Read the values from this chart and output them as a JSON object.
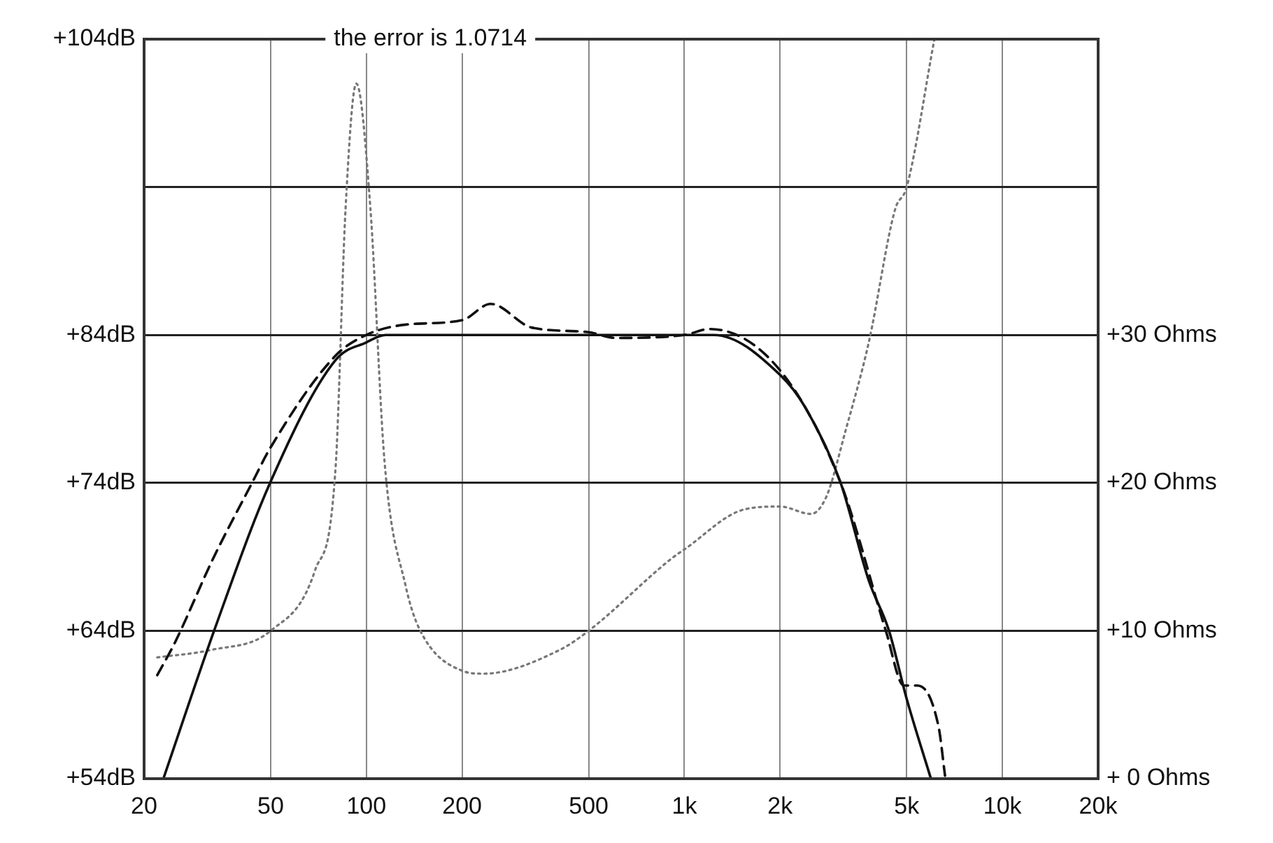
{
  "chart_data": {
    "type": "line",
    "title": "the error is 1.0714",
    "log": "x",
    "grid": true,
    "marker": "none",
    "legend": false,
    "xlim": [
      20,
      20000
    ],
    "xticks": [
      20,
      50,
      100,
      200,
      500,
      {
        "value": 1000,
        "label": "1k"
      },
      {
        "value": 2000,
        "label": "2k"
      },
      {
        "value": 5000,
        "label": "5k"
      },
      {
        "value": 10000,
        "label": "10k"
      },
      {
        "value": 20000,
        "label": "20k"
      }
    ],
    "ylim": [
      54,
      104
    ],
    "yticks": [
      {
        "value": 54,
        "label": "+54dB"
      },
      {
        "value": 64,
        "label": "+64dB"
      },
      {
        "value": 74,
        "label": "+74dB"
      },
      {
        "value": 84,
        "label": "+84dB"
      },
      {
        "value": 94,
        "label": null
      },
      {
        "value": 104,
        "label": "+104dB"
      }
    ],
    "y2lim": [
      0,
      50
    ],
    "y2ticks": [
      {
        "value": 0,
        "label": "+ 0 Ohms"
      },
      {
        "value": 10,
        "label": "+10 Ohms"
      },
      {
        "value": 20,
        "label": "+20 Ohms"
      },
      {
        "value": 30,
        "label": "+30 Ohms"
      },
      {
        "value": 40,
        "label": null
      },
      {
        "value": 50,
        "label": null
      }
    ],
    "series": [
      {
        "color": "#111111",
        "line_style": "solid",
        "x": [
          23,
          33.2,
          49.8,
          80,
          100,
          115,
          1240,
          2000,
          2400,
          3100,
          3800,
          4400,
          5000,
          5960
        ],
        "values": [
          54,
          64,
          74,
          82.3,
          83.5,
          84,
          84,
          81.3,
          79.1,
          74,
          67.4,
          64,
          59.4,
          54
        ]
      },
      {
        "color": "#111111",
        "line_style": "dashed",
        "x": [
          22,
          25,
          33,
          43.7,
          50,
          80,
          100,
          133,
          200,
          246,
          331,
          496,
          607,
          1000,
          1200,
          2000,
          3100,
          4300,
          4900,
          5400,
          6300,
          6600
        ],
        "values": [
          61,
          63.2,
          68.9,
          74,
          76.4,
          82.6,
          84,
          84.7,
          85,
          86.1,
          84.5,
          84.2,
          83.8,
          84,
          84.4,
          81.6,
          74,
          64,
          60.3,
          60.3,
          57.5,
          54.2
        ]
      },
      {
        "color": "#777777",
        "line_style": "dotted",
        "axis": "y2",
        "x": [
          22,
          32.4,
          50,
          69,
          80,
          86,
          93,
          103,
          114,
          133,
          147,
          200,
          233,
          405,
          500,
          913,
          1000,
          1540,
          2000,
          2500,
          2800,
          3200,
          3800,
          4600,
          5000,
          6100
        ],
        "values": [
          8.2,
          8.7,
          10,
          14.1,
          21,
          38.5,
          47,
          38.5,
          21.5,
          13,
          10.1,
          7.3,
          7.1,
          8.7,
          10,
          14.9,
          15.5,
          18.2,
          18.4,
          17.9,
          19.1,
          23.4,
          29.5,
          38.5,
          40,
          49.9
        ]
      }
    ]
  }
}
